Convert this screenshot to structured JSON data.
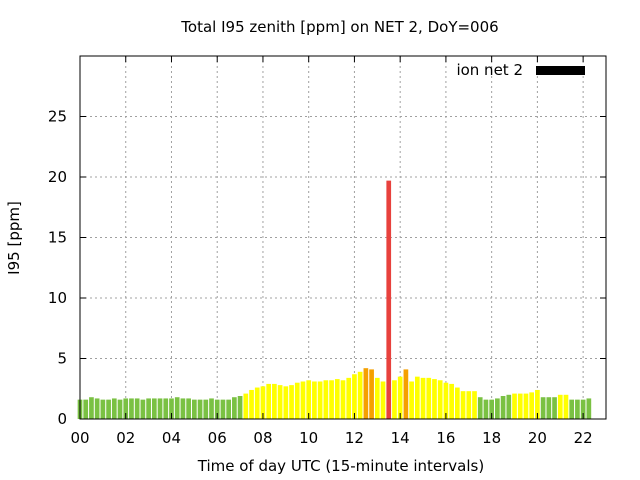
{
  "chart_data": {
    "type": "bar",
    "title": "Total I95 zenith [ppm] on NET 2, DoY=006",
    "xlabel": "Time of day UTC (15-minute intervals)",
    "ylabel": "I95 [ppm]",
    "ylim": [
      0,
      30
    ],
    "xlim": [
      0,
      23
    ],
    "yticks": [
      "0",
      "5",
      "10",
      "15",
      "20",
      "25"
    ],
    "xticks": [
      "00",
      "02",
      "04",
      "06",
      "08",
      "10",
      "12",
      "14",
      "16",
      "18",
      "20",
      "22"
    ],
    "grid": true,
    "legend": {
      "position": "top-right",
      "label": "ion net 2",
      "color": "#000000"
    },
    "interval_hours": 0.25,
    "colors": {
      "green": "#7ac143",
      "yellow": "#ffff00",
      "orange": "#f5a000",
      "red": "#e8413d"
    },
    "bar_values": [
      1.6,
      1.6,
      1.8,
      1.7,
      1.6,
      1.6,
      1.7,
      1.6,
      1.7,
      1.7,
      1.7,
      1.6,
      1.7,
      1.7,
      1.7,
      1.7,
      1.7,
      1.8,
      1.7,
      1.7,
      1.6,
      1.6,
      1.6,
      1.7,
      1.6,
      1.6,
      1.6,
      1.8,
      1.9,
      2.1,
      2.4,
      2.6,
      2.7,
      2.9,
      2.9,
      2.8,
      2.7,
      2.8,
      3.0,
      3.1,
      3.2,
      3.1,
      3.1,
      3.2,
      3.2,
      3.3,
      3.2,
      3.4,
      3.7,
      3.9,
      4.2,
      4.1,
      3.4,
      3.1,
      19.7,
      3.2,
      3.5,
      4.1,
      3.1,
      3.5,
      3.4,
      3.4,
      3.3,
      3.2,
      3.0,
      2.9,
      2.6,
      2.3,
      2.3,
      2.3,
      1.8,
      1.6,
      1.6,
      1.7,
      1.9,
      2.0,
      2.1,
      2.1,
      2.1,
      2.2,
      2.4,
      1.8,
      1.8,
      1.8,
      2.0,
      2.0,
      1.6,
      1.6,
      1.6,
      1.7
    ],
    "bar_colors": [
      "green",
      "green",
      "green",
      "green",
      "green",
      "green",
      "green",
      "green",
      "green",
      "green",
      "green",
      "green",
      "green",
      "green",
      "green",
      "green",
      "green",
      "green",
      "green",
      "green",
      "green",
      "green",
      "green",
      "green",
      "green",
      "green",
      "green",
      "green",
      "green",
      "yellow",
      "yellow",
      "yellow",
      "yellow",
      "yellow",
      "yellow",
      "yellow",
      "yellow",
      "yellow",
      "yellow",
      "yellow",
      "yellow",
      "yellow",
      "yellow",
      "yellow",
      "yellow",
      "yellow",
      "yellow",
      "yellow",
      "yellow",
      "yellow",
      "orange",
      "orange",
      "yellow",
      "yellow",
      "red",
      "yellow",
      "yellow",
      "orange",
      "yellow",
      "yellow",
      "yellow",
      "yellow",
      "yellow",
      "yellow",
      "yellow",
      "yellow",
      "yellow",
      "yellow",
      "yellow",
      "yellow",
      "green",
      "green",
      "green",
      "green",
      "green",
      "green",
      "yellow",
      "yellow",
      "yellow",
      "yellow",
      "yellow",
      "green",
      "green",
      "green",
      "yellow",
      "yellow",
      "green",
      "green",
      "green",
      "green"
    ]
  }
}
